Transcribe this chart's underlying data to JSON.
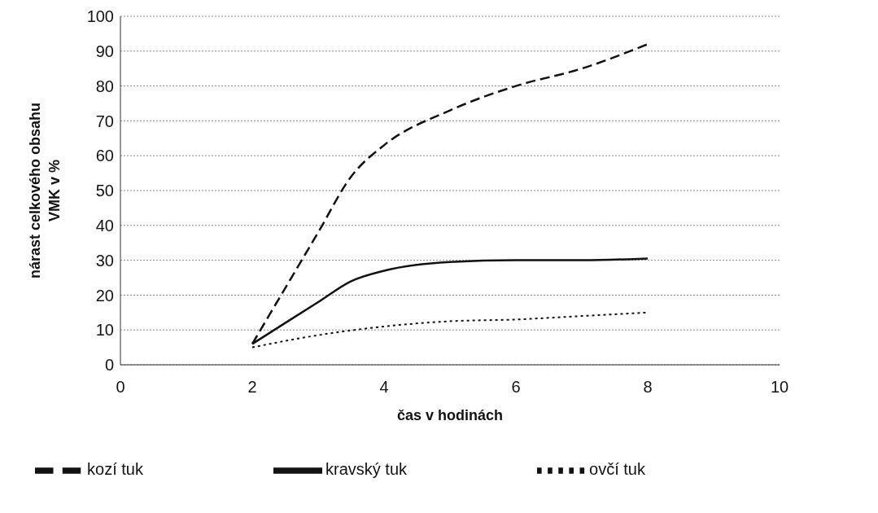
{
  "chart_data": {
    "type": "line",
    "xlabel": "čas v hodinách",
    "ylabel": "nárast celkového obsahu VMK v %",
    "xlim": [
      0,
      10
    ],
    "xticks": [
      0,
      2,
      4,
      6,
      8,
      10
    ],
    "ylim": [
      0,
      100
    ],
    "yticks": [
      0,
      10,
      20,
      30,
      40,
      50,
      60,
      70,
      80,
      90,
      100
    ],
    "grid": "y",
    "legend": "bottom",
    "marker": "none",
    "series": [
      {
        "name": "kravský tuk",
        "color": "#111111",
        "line_style": "solid",
        "x": [
          2,
          2.5,
          3,
          3.5,
          4,
          5,
          6,
          7,
          8
        ],
        "values": [
          6,
          12,
          18,
          24,
          27,
          29.5,
          30,
          30,
          30.5
        ]
      },
      {
        "name": "ovčí tuk",
        "color": "#111111",
        "line_style": "dotted",
        "x": [
          2,
          3,
          4,
          5,
          6,
          7,
          8
        ],
        "values": [
          5,
          8.5,
          11,
          12.5,
          13,
          14,
          15
        ]
      },
      {
        "name": "kozí tuk",
        "color": "#111111",
        "line_style": "dashed",
        "x": [
          2,
          2.5,
          3,
          3.5,
          4,
          5,
          6,
          7,
          8
        ],
        "values": [
          6,
          22,
          38,
          54,
          63,
          73,
          80,
          85,
          92
        ]
      }
    ]
  }
}
